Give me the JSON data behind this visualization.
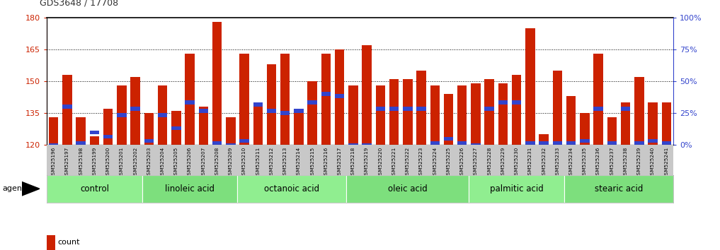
{
  "title": "GDS3648 / 17708",
  "samples": [
    "GSM525196",
    "GSM525197",
    "GSM525198",
    "GSM525199",
    "GSM525200",
    "GSM525201",
    "GSM525202",
    "GSM525203",
    "GSM525204",
    "GSM525205",
    "GSM525206",
    "GSM525207",
    "GSM525208",
    "GSM525209",
    "GSM525210",
    "GSM525211",
    "GSM525212",
    "GSM525213",
    "GSM525214",
    "GSM525215",
    "GSM525216",
    "GSM525217",
    "GSM525218",
    "GSM525219",
    "GSM525220",
    "GSM525221",
    "GSM525222",
    "GSM525223",
    "GSM525224",
    "GSM525225",
    "GSM525226",
    "GSM525227",
    "GSM525228",
    "GSM525229",
    "GSM525230",
    "GSM525231",
    "GSM525232",
    "GSM525233",
    "GSM525234",
    "GSM525235",
    "GSM525236",
    "GSM525237",
    "GSM525238",
    "GSM525239",
    "GSM525240",
    "GSM525241"
  ],
  "counts": [
    133,
    153,
    133,
    124,
    137,
    148,
    152,
    135,
    148,
    136,
    163,
    138,
    178,
    133,
    163,
    140,
    158,
    163,
    135,
    150,
    163,
    165,
    148,
    167,
    148,
    151,
    151,
    155,
    148,
    144,
    148,
    149,
    151,
    149,
    153,
    175,
    125,
    155,
    143,
    135,
    163,
    133,
    140,
    152,
    140,
    140
  ],
  "percentile_vals": [
    120,
    138,
    121,
    126,
    124,
    134,
    137,
    122,
    134,
    128,
    140,
    136,
    121,
    120,
    122,
    139,
    136,
    135,
    136,
    140,
    144,
    143,
    120,
    120,
    137,
    137,
    137,
    137,
    121,
    123,
    121,
    120,
    137,
    140,
    140,
    121,
    121,
    121,
    121,
    122,
    137,
    121,
    137,
    121,
    122,
    121
  ],
  "groups": [
    {
      "label": "control",
      "start": 0,
      "end": 7
    },
    {
      "label": "linoleic acid",
      "start": 7,
      "end": 14
    },
    {
      "label": "octanoic acid",
      "start": 14,
      "end": 22
    },
    {
      "label": "oleic acid",
      "start": 22,
      "end": 31
    },
    {
      "label": "palmitic acid",
      "start": 31,
      "end": 38
    },
    {
      "label": "stearic acid",
      "start": 38,
      "end": 46
    }
  ],
  "ymin": 120,
  "ymax": 180,
  "yticks": [
    120,
    135,
    150,
    165,
    180
  ],
  "y2ticks": [
    0,
    25,
    50,
    75,
    100
  ],
  "bar_color": "#CC2200",
  "percentile_color": "#3344CC",
  "left_axis_color": "#CC2200",
  "right_axis_color": "#3344CC",
  "group_fill": "#90EE90",
  "tick_bg": "#c8c8c8"
}
